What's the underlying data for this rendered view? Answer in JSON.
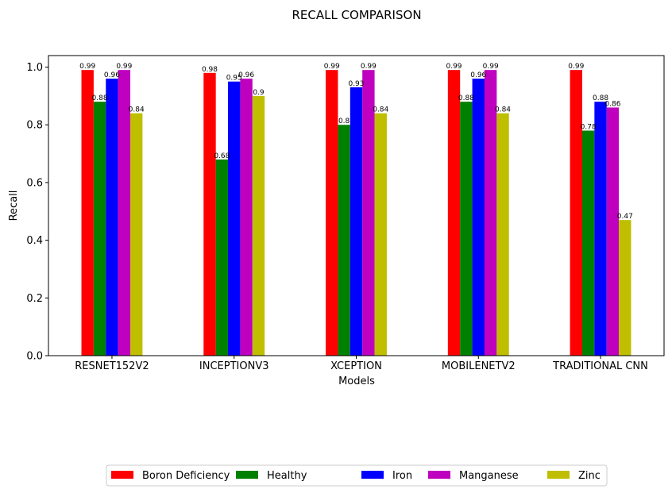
{
  "chart_data": {
    "type": "bar",
    "title": "RECALL COMPARISON",
    "xlabel": "Models",
    "ylabel": "Recall",
    "ylim": [
      0,
      1.04
    ],
    "yticks": [
      "0.0",
      "0.2",
      "0.4",
      "0.6",
      "0.8",
      "1.0"
    ],
    "grid": false,
    "legend_position": "bottom-center",
    "categories": [
      "RESNET152V2",
      "INCEPTIONV3",
      "XCEPTION",
      "MOBILENETV2",
      "TRADITIONAL CNN"
    ],
    "series": [
      {
        "name": "Boron Deficiency",
        "color": "#ff0000",
        "values": [
          0.99,
          0.98,
          0.99,
          0.99,
          0.99
        ],
        "labels": [
          "0.99",
          "0.98",
          "0.99",
          "0.99",
          "0.99"
        ]
      },
      {
        "name": "Healthy",
        "color": "#008000",
        "values": [
          0.88,
          0.68,
          0.8,
          0.88,
          0.78
        ],
        "labels": [
          "0.88",
          "0.68",
          "0.8",
          "0.88",
          "0.78"
        ]
      },
      {
        "name": "Iron",
        "color": "#0000ff",
        "values": [
          0.96,
          0.95,
          0.93,
          0.96,
          0.88
        ],
        "labels": [
          "0.96",
          "0.95",
          "0.93",
          "0.96",
          "0.88"
        ]
      },
      {
        "name": "Manganese",
        "color": "#bf00bf",
        "values": [
          0.99,
          0.96,
          0.99,
          0.99,
          0.86
        ],
        "labels": [
          "0.99",
          "0.96",
          "0.99",
          "0.99",
          "0.86"
        ]
      },
      {
        "name": "Zinc",
        "color": "#bfbf00",
        "values": [
          0.84,
          0.9,
          0.84,
          0.84,
          0.47
        ],
        "labels": [
          "0.84",
          "0.9",
          "0.84",
          "0.84",
          "0.47"
        ]
      }
    ]
  }
}
